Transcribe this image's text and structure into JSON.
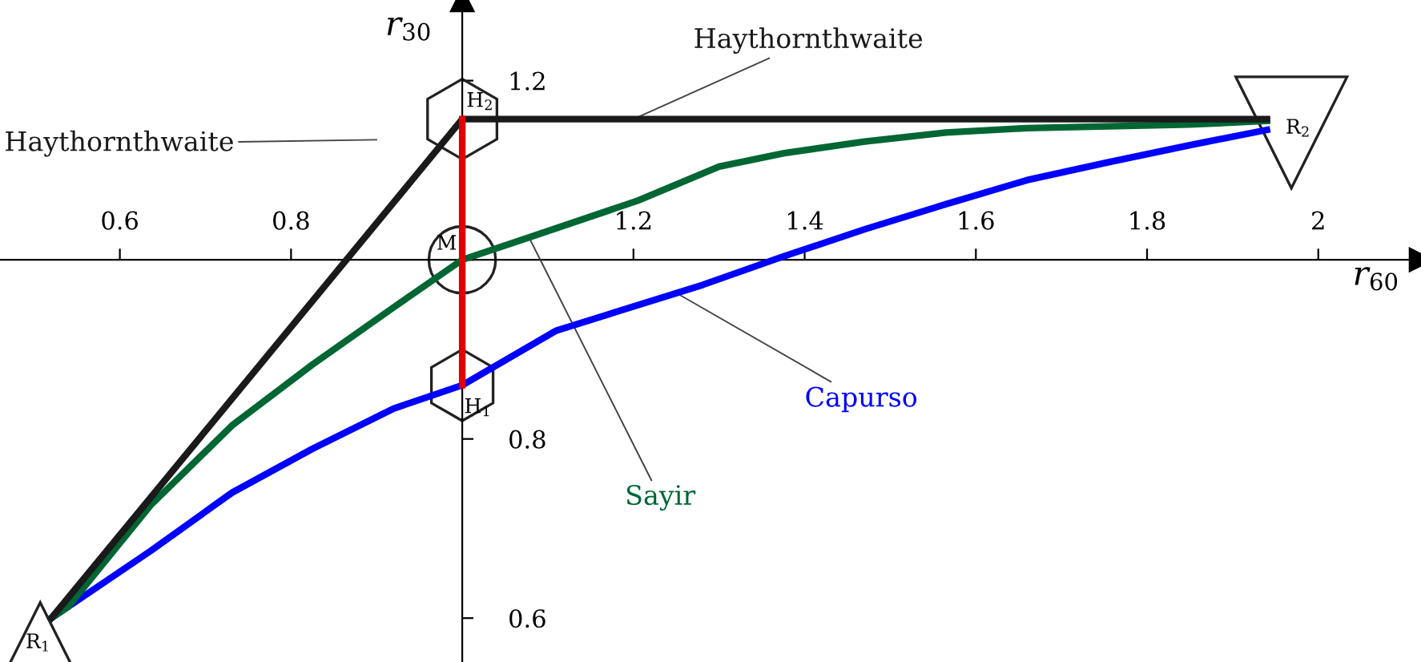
{
  "chart_data": {
    "type": "line",
    "xlabel": "r$_{60}$",
    "ylabel": "r$_{30}$",
    "xlim": [
      0.46,
      2.12
    ],
    "ylim": [
      0.551,
      1.29
    ],
    "xticks": [
      0.6,
      0.8,
      {
        "value": 1.0,
        "label": null
      },
      1.2,
      1.4,
      1.6,
      1.8,
      2
    ],
    "yticks": [
      0.6,
      0.8,
      {
        "value": 1.0,
        "label": null
      },
      1.2
    ],
    "grid": false,
    "legend": false,
    "series": [
      {
        "color": "#0000ff",
        "name": "Capurso",
        "x": [
          0.52,
          0.636,
          0.731,
          0.825,
          0.92,
          1.0,
          1.11,
          1.281,
          1.376,
          1.47,
          1.565,
          1.66,
          1.755,
          1.85,
          1.94
        ],
        "values": [
          0.6,
          0.675,
          0.74,
          0.789,
          0.834,
          0.86,
          0.921,
          0.972,
          1.004,
          1.034,
          1.062,
          1.089,
          1.109,
          1.128,
          1.145
        ]
      },
      {
        "color": "#006633",
        "name": "Sayir",
        "x": [
          0.52,
          0.54,
          0.636,
          0.731,
          0.825,
          0.92,
          1.0,
          1.078,
          1.205,
          1.3,
          1.376,
          1.47,
          1.565,
          1.66,
          1.755,
          1.85,
          1.94
        ],
        "values": [
          0.6,
          0.613,
          0.726,
          0.815,
          0.883,
          0.947,
          1.0,
          1.025,
          1.066,
          1.104,
          1.119,
          1.132,
          1.142,
          1.147,
          1.149,
          1.151,
          1.155
        ]
      },
      {
        "color": "#1a1a1a",
        "name": "Haythornthwaite",
        "x": [
          0.52,
          1.0,
          1.94
        ],
        "values": [
          0.6,
          1.157,
          1.157
        ]
      },
      {
        "color": "#e00000",
        "x": [
          1.0,
          1.0
        ],
        "values": [
          0.86,
          1.157
        ]
      }
    ],
    "annotations": [
      {
        "text": "R$_{1}$",
        "x": 0.52,
        "y": 0.6
      },
      {
        "text": "H$_{2}$",
        "x": 1.0,
        "y": 1.157
      },
      {
        "text": "M",
        "x": 1.0,
        "y": 1.0
      },
      {
        "text": "H$_{1}$",
        "x": 1.0,
        "y": 0.86
      },
      {
        "text": "R$_{2}$",
        "x": 1.94,
        "y": 1.157
      }
    ]
  }
}
